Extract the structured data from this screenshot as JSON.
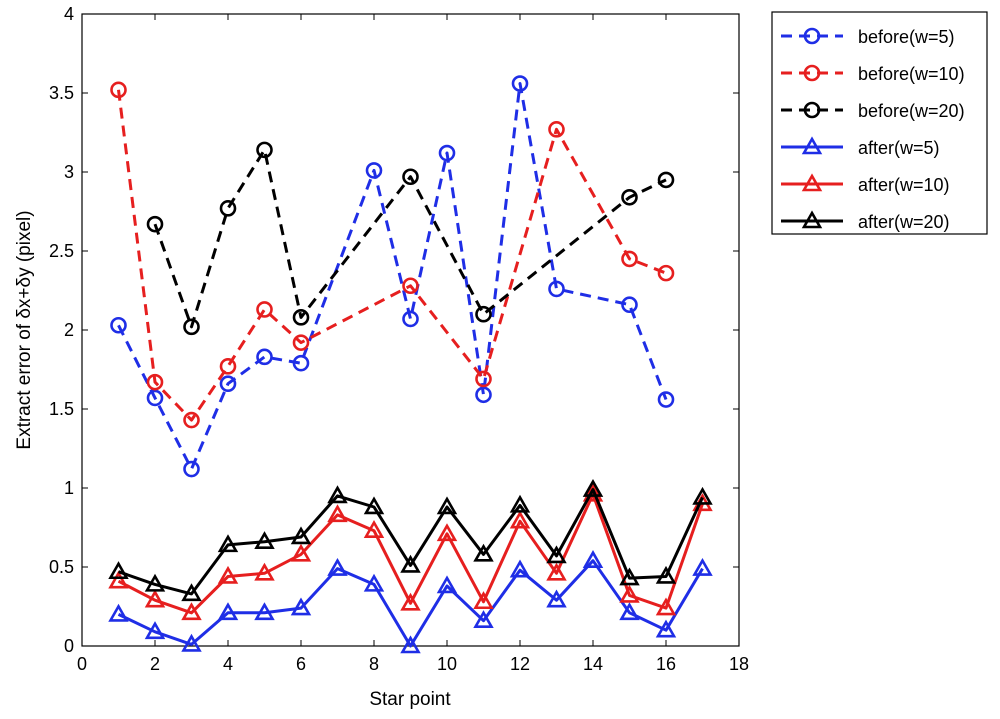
{
  "chart_data": {
    "type": "line",
    "title": "",
    "xlabel": "Star point",
    "ylabel": "Extract error of δx+δy (pixel)",
    "xlim": [
      0,
      18
    ],
    "ylim": [
      0,
      4
    ],
    "xticks": [
      0,
      2,
      4,
      6,
      8,
      10,
      12,
      14,
      16,
      18
    ],
    "yticks": [
      0,
      0.5,
      1,
      1.5,
      2,
      2.5,
      3,
      3.5,
      4
    ],
    "xtick_labels": [
      "0",
      "2",
      "4",
      "6",
      "8",
      "10",
      "12",
      "14",
      "16",
      "18"
    ],
    "ytick_labels": [
      "0",
      "0.5",
      "1",
      "1.5",
      "2",
      "2.5",
      "3",
      "3.5",
      "4"
    ],
    "grid": false,
    "legend_position": "outside-top-right",
    "series": [
      {
        "name": "before(w=5)",
        "color": "#1f2ee6",
        "style": "dashed",
        "marker": "circle",
        "x": [
          1,
          2,
          3,
          4,
          5,
          6,
          8,
          9,
          10,
          11,
          12,
          13,
          15,
          16
        ],
        "y": [
          2.03,
          1.57,
          1.12,
          1.66,
          1.83,
          1.79,
          3.01,
          2.07,
          3.12,
          1.59,
          3.56,
          2.26,
          2.16,
          1.56
        ]
      },
      {
        "name": "before(w=10)",
        "color": "#e61f1f",
        "style": "dashed",
        "marker": "circle",
        "x": [
          1,
          2,
          3,
          4,
          5,
          6,
          9,
          11,
          13,
          15,
          16
        ],
        "y": [
          3.52,
          1.67,
          1.43,
          1.77,
          2.13,
          1.92,
          2.28,
          1.69,
          3.27,
          2.45,
          2.36
        ]
      },
      {
        "name": "before(w=20)",
        "color": "#000000",
        "style": "dashed",
        "marker": "circle",
        "x": [
          2,
          3,
          4,
          5,
          6,
          9,
          11,
          15,
          16
        ],
        "y": [
          2.67,
          2.02,
          2.77,
          3.14,
          2.08,
          2.97,
          2.1,
          2.84,
          2.95
        ]
      },
      {
        "name": "after(w=5)",
        "color": "#1f2ee6",
        "style": "solid",
        "marker": "triangle",
        "x": [
          1,
          2,
          3,
          4,
          5,
          6,
          7,
          8,
          9,
          10,
          11,
          12,
          13,
          14,
          15,
          16,
          17
        ],
        "y": [
          0.2,
          0.09,
          0.01,
          0.21,
          0.21,
          0.24,
          0.49,
          0.39,
          0.0,
          0.38,
          0.16,
          0.48,
          0.29,
          0.54,
          0.21,
          0.1,
          0.49
        ]
      },
      {
        "name": "after(w=10)",
        "color": "#e61f1f",
        "style": "solid",
        "marker": "triangle",
        "x": [
          1,
          2,
          3,
          4,
          5,
          6,
          7,
          8,
          9,
          10,
          11,
          12,
          13,
          14,
          15,
          16,
          17
        ],
        "y": [
          0.41,
          0.29,
          0.21,
          0.44,
          0.46,
          0.58,
          0.83,
          0.73,
          0.27,
          0.71,
          0.28,
          0.79,
          0.46,
          0.96,
          0.32,
          0.24,
          0.9
        ]
      },
      {
        "name": "after(w=20)",
        "color": "#000000",
        "style": "solid",
        "marker": "triangle",
        "x": [
          1,
          2,
          3,
          4,
          5,
          6,
          7,
          8,
          9,
          10,
          11,
          12,
          13,
          14,
          15,
          16,
          17
        ],
        "y": [
          0.47,
          0.39,
          0.33,
          0.64,
          0.66,
          0.69,
          0.95,
          0.88,
          0.51,
          0.88,
          0.58,
          0.89,
          0.57,
          0.99,
          0.43,
          0.44,
          0.94
        ]
      }
    ]
  }
}
